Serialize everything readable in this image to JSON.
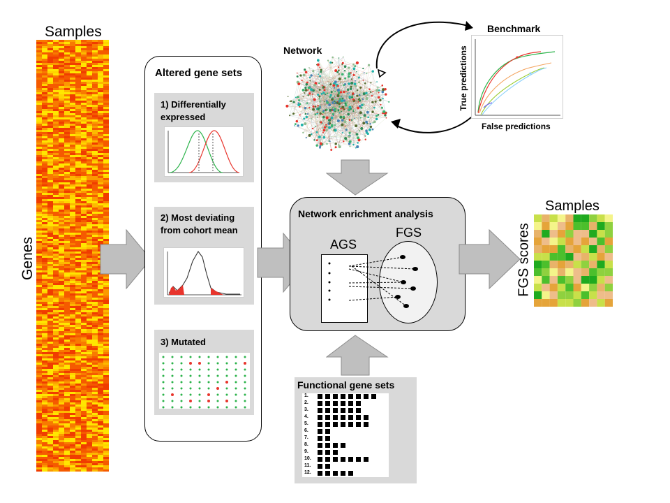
{
  "left": {
    "samples_label": "Samples",
    "genes_label": "Genes"
  },
  "ags_panel": {
    "title": "Altered gene sets",
    "methods": [
      "1) Differentially expressed",
      "2) Most deviating from cohort mean",
      "3) Mutated"
    ],
    "method1_lines": [
      "1) Differentially",
      "expressed"
    ],
    "method2_lines": [
      "2) Most deviating",
      "from cohort mean"
    ]
  },
  "network": {
    "label": "Network"
  },
  "benchmark": {
    "title": "Benchmark",
    "xlabel": "False predictions",
    "ylabel": "True predictions"
  },
  "nea": {
    "title": "Network enrichment analysis",
    "ags_label": "AGS",
    "fgs_label": "FGS"
  },
  "fgs_sets": {
    "title": "Functional gene sets",
    "rows": [
      "1.",
      "2.",
      "3.",
      "4.",
      "5.",
      "6.",
      "7.",
      "8.",
      "9.",
      "10.",
      "11.",
      "12."
    ],
    "counts": [
      8,
      6,
      6,
      7,
      7,
      2,
      2,
      4,
      3,
      7,
      2,
      5
    ]
  },
  "output": {
    "samples_label": "Samples",
    "scores_label": "FGS scores"
  },
  "colors": {
    "panel": "#d9d9d9",
    "arrow": "#bfbfbf",
    "heat_red": "#f03c00",
    "heat_yellow": "#ffe000",
    "green_curve": "#2bb34a",
    "red_curve": "#e8342c"
  }
}
